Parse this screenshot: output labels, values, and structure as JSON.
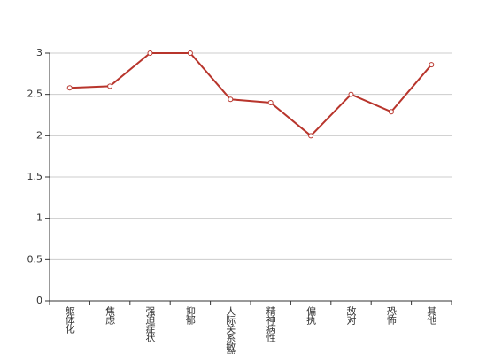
{
  "chart_data": {
    "type": "line",
    "categories": [
      "躯体化",
      "焦虑",
      "强迫症状",
      "抑郁",
      "人际关系敏感",
      "精神病性",
      "偏执",
      "敌对",
      "恐怖",
      "其他"
    ],
    "series": [
      {
        "color": "#b8352c",
        "values": [
          2.58,
          2.6,
          3,
          3,
          2.44,
          2.4,
          2,
          2.5,
          2.29,
          2.86
        ]
      }
    ],
    "ylim": [
      0,
      3
    ],
    "yticks": [
      0,
      0.5,
      1,
      1.5,
      2,
      2.5,
      3
    ],
    "grid": true
  }
}
